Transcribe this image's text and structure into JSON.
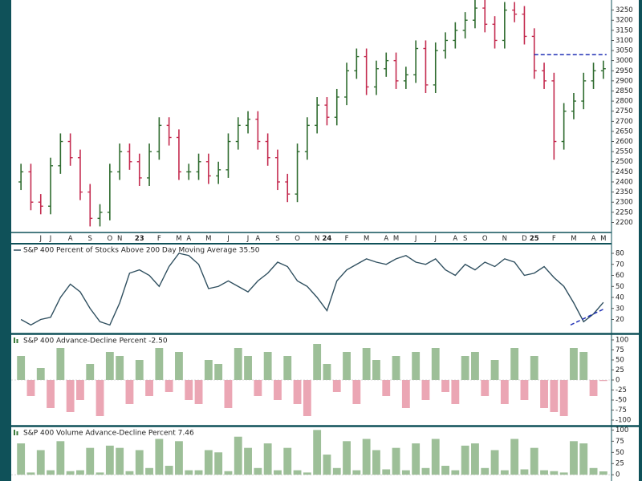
{
  "chart_data": [
    {
      "type": "ohlc",
      "categories": [
        null,
        null,
        "J",
        "J",
        null,
        "A",
        null,
        "S",
        null,
        "O",
        "N",
        null,
        "23",
        null,
        "F",
        null,
        "M",
        "A",
        null,
        "M",
        null,
        "J",
        null,
        "J",
        "A",
        null,
        "S",
        null,
        "O",
        null,
        "N",
        "24",
        null,
        "F",
        null,
        "M",
        null,
        "A",
        "M",
        null,
        "J",
        null,
        "J",
        null,
        "A",
        "S",
        null,
        "O",
        null,
        "N",
        null,
        "D",
        "25",
        null,
        "F",
        null,
        "M",
        null,
        "A",
        "M"
      ],
      "open": [
        2400,
        2450,
        2300,
        2280,
        2480,
        2600,
        2520,
        2350,
        2220,
        2250,
        2450,
        2550,
        2500,
        2420,
        2550,
        2680,
        2620,
        2450,
        2450,
        2500,
        2430,
        2460,
        2600,
        2680,
        2710,
        2600,
        2520,
        2400,
        2340,
        2550,
        2680,
        2780,
        2720,
        2820,
        2950,
        3020,
        2870,
        2960,
        3000,
        2900,
        2930,
        3060,
        2880,
        3050,
        3100,
        3150,
        3200,
        3260,
        3180,
        3100,
        3250,
        3230,
        3120,
        2950,
        2900,
        2600,
        2750,
        2800,
        2900,
        2950
      ],
      "high": [
        2490,
        2490,
        2340,
        2520,
        2640,
        2640,
        2560,
        2390,
        2290,
        2490,
        2590,
        2590,
        2540,
        2590,
        2720,
        2720,
        2660,
        2490,
        2540,
        2540,
        2500,
        2640,
        2720,
        2750,
        2750,
        2640,
        2560,
        2440,
        2590,
        2720,
        2820,
        2820,
        2860,
        2990,
        3060,
        3060,
        3000,
        3040,
        3040,
        2970,
        3100,
        3100,
        3090,
        3140,
        3190,
        3240,
        3300,
        3300,
        3220,
        3290,
        3290,
        3270,
        3160,
        2990,
        2940,
        2790,
        2840,
        2940,
        2990,
        3000
      ],
      "low": [
        2360,
        2260,
        2240,
        2240,
        2440,
        2480,
        2310,
        2180,
        2180,
        2210,
        2410,
        2460,
        2380,
        2380,
        2510,
        2580,
        2410,
        2410,
        2410,
        2390,
        2390,
        2420,
        2560,
        2640,
        2560,
        2480,
        2360,
        2300,
        2300,
        2510,
        2640,
        2680,
        2680,
        2780,
        2910,
        2830,
        2830,
        2920,
        2860,
        2860,
        2890,
        2840,
        2840,
        3010,
        3060,
        3110,
        3160,
        3140,
        3060,
        3060,
        3190,
        3080,
        2910,
        2860,
        2510,
        2560,
        2710,
        2760,
        2860,
        2910
      ],
      "close": [
        2450,
        2300,
        2280,
        2480,
        2600,
        2520,
        2350,
        2220,
        2250,
        2450,
        2550,
        2500,
        2420,
        2550,
        2680,
        2620,
        2450,
        2450,
        2500,
        2430,
        2460,
        2600,
        2680,
        2710,
        2600,
        2520,
        2400,
        2340,
        2550,
        2680,
        2780,
        2720,
        2820,
        2950,
        3020,
        2870,
        2960,
        3000,
        2900,
        2930,
        3060,
        2880,
        3050,
        3100,
        3150,
        3200,
        3260,
        3180,
        3100,
        3250,
        3230,
        3120,
        2950,
        2900,
        2600,
        2750,
        2800,
        2900,
        2950,
        2960
      ],
      "up_color": "#2e6b2e",
      "down_color": "#c42b4f",
      "ylim": [
        2150,
        3300
      ],
      "yticks": [
        2200,
        2250,
        2300,
        2350,
        2400,
        2450,
        2500,
        2550,
        2600,
        2650,
        2700,
        2750,
        2800,
        2850,
        2900,
        2950,
        3000,
        3050,
        3100,
        3150,
        3200,
        3250
      ],
      "reference_line": 3030,
      "reference_color": "#1f2fb5"
    },
    {
      "type": "line",
      "title": "S&P 400 Percent of Stocks Above 200 Day Moving Average 35.50",
      "values": [
        20,
        15,
        20,
        22,
        40,
        52,
        45,
        30,
        18,
        15,
        35,
        62,
        65,
        60,
        50,
        68,
        80,
        78,
        70,
        48,
        50,
        55,
        50,
        45,
        55,
        62,
        72,
        68,
        55,
        50,
        40,
        28,
        55,
        65,
        70,
        75,
        72,
        70,
        75,
        78,
        72,
        70,
        75,
        65,
        60,
        70,
        65,
        72,
        68,
        75,
        72,
        60,
        62,
        68,
        58,
        50,
        35,
        18,
        25,
        35.5
      ],
      "color": "#2f4f5f",
      "ylim": [
        8,
        88
      ],
      "yticks": [
        20,
        30,
        40,
        50,
        60,
        70,
        80
      ],
      "trendline": [
        15,
        30
      ],
      "trend_color": "#1f2fb5"
    },
    {
      "type": "bar",
      "title": "S&P 400 Advance-Decline Percent -2.50",
      "values": [
        60,
        -40,
        30,
        -70,
        80,
        -80,
        -50,
        40,
        -90,
        70,
        60,
        -60,
        50,
        -40,
        80,
        -30,
        70,
        -50,
        -60,
        50,
        40,
        -70,
        80,
        60,
        -40,
        70,
        -50,
        60,
        -60,
        -90,
        90,
        40,
        -30,
        70,
        -60,
        80,
        50,
        -40,
        60,
        -70,
        70,
        -50,
        80,
        -30,
        -60,
        60,
        70,
        -40,
        50,
        -60,
        80,
        -50,
        60,
        -70,
        -80,
        -90,
        80,
        70,
        -40,
        -2.5
      ],
      "pos_color": "#9dbf98",
      "neg_color": "#eba6b4",
      "ylim": [
        -112,
        112
      ],
      "yticks": [
        -100,
        -75,
        -50,
        -25,
        0,
        25,
        50,
        75,
        100
      ]
    },
    {
      "type": "bar",
      "title": "S&P 400 Volume Advance-Decline Percent 7.46",
      "values": [
        70,
        5,
        55,
        10,
        75,
        8,
        10,
        60,
        5,
        65,
        60,
        8,
        55,
        15,
        80,
        20,
        75,
        10,
        10,
        55,
        50,
        8,
        85,
        60,
        15,
        70,
        10,
        60,
        10,
        5,
        100,
        45,
        15,
        75,
        10,
        80,
        55,
        12,
        60,
        10,
        70,
        15,
        80,
        20,
        10,
        65,
        70,
        15,
        55,
        10,
        80,
        12,
        60,
        10,
        8,
        5,
        75,
        70,
        15,
        7.46
      ],
      "pos_color": "#9dbf98",
      "neg_color": "#eba6b4",
      "ylim": [
        -14,
        106
      ],
      "yticks": [
        0,
        25,
        50,
        75,
        100
      ]
    }
  ]
}
